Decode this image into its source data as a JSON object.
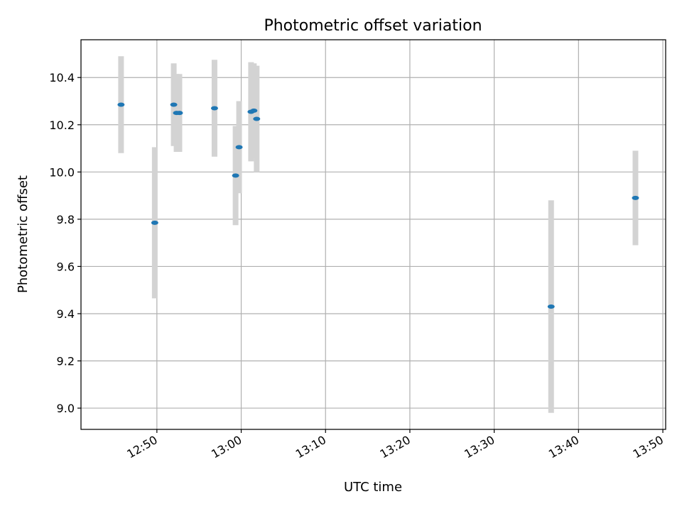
{
  "chart_data": {
    "type": "scatter",
    "title": "Photometric offset variation",
    "xlabel": "UTC time",
    "ylabel": "Photometric offset",
    "xlim": [
      "12:41",
      "13:50:20"
    ],
    "ylim": [
      8.91,
      10.56
    ],
    "grid": true,
    "legend": "none",
    "x_ticks": [
      "12:50",
      "13:00",
      "13:10",
      "13:20",
      "13:30",
      "13:40",
      "13:50"
    ],
    "y_ticks": [
      "9.0",
      "9.2",
      "9.4",
      "9.6",
      "9.8",
      "10.0",
      "10.2",
      "10.4"
    ],
    "points": [
      {
        "x": "12:45:45",
        "y": 10.285,
        "error": 0.205
      },
      {
        "x": "12:49:45",
        "y": 9.785,
        "error": 0.32
      },
      {
        "x": "12:52:00",
        "y": 10.285,
        "error": 0.175
      },
      {
        "x": "12:52:20",
        "y": 10.25,
        "error": 0.165
      },
      {
        "x": "12:52:40",
        "y": 10.25,
        "error": 0.165
      },
      {
        "x": "12:56:50",
        "y": 10.27,
        "error": 0.205
      },
      {
        "x": "12:59:20",
        "y": 9.985,
        "error": 0.21
      },
      {
        "x": "12:59:45",
        "y": 10.105,
        "error": 0.195
      },
      {
        "x": "13:01:10",
        "y": 10.255,
        "error": 0.21
      },
      {
        "x": "13:01:30",
        "y": 10.26,
        "error": 0.2
      },
      {
        "x": "13:01:50",
        "y": 10.225,
        "error": 0.225
      },
      {
        "x": "13:36:45",
        "y": 9.43,
        "error": 0.45
      },
      {
        "x": "13:46:45",
        "y": 9.89,
        "error": 0.2
      }
    ],
    "marker_color": "#1f77b4",
    "errorbar_color": "#d3d3d3"
  }
}
